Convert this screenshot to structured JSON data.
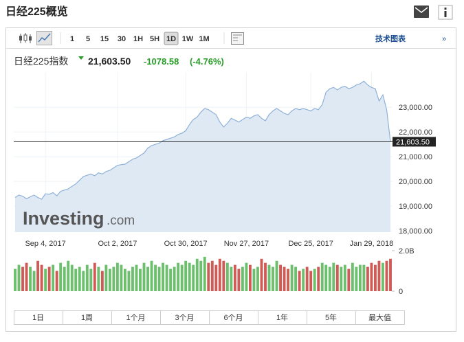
{
  "header": {
    "title": "日经225概览"
  },
  "toolbar": {
    "intervals": [
      "1",
      "5",
      "15",
      "30",
      "1H",
      "5H",
      "1D",
      "1W",
      "1M"
    ],
    "active_interval": 6,
    "link": "技术图表",
    "link_arrow": "»"
  },
  "quote": {
    "name": "日经225指数",
    "price": "21,603.50",
    "change": "-1078.58",
    "change_pct": "(-4.76%)"
  },
  "watermark": {
    "brand": "Investing",
    "suffix": ".com"
  },
  "ranges": [
    "1日",
    "1周",
    "1个月",
    "3个月",
    "6个月",
    "1年",
    "5年",
    "最大值"
  ],
  "chart_data": {
    "type": "area",
    "categories": [
      null,
      null,
      null,
      null,
      null,
      null,
      null,
      null,
      "Sep 4, 2017",
      null,
      null,
      null,
      null,
      null,
      null,
      null,
      null,
      null,
      null,
      null,
      null,
      null,
      null,
      null,
      null,
      null,
      null,
      "Oct 2, 2017",
      null,
      null,
      null,
      null,
      null,
      null,
      null,
      null,
      null,
      null,
      null,
      null,
      null,
      null,
      null,
      null,
      null,
      "Oct 30, 2017",
      null,
      null,
      null,
      null,
      null,
      null,
      null,
      null,
      null,
      null,
      null,
      null,
      null,
      null,
      null,
      "Nov 27, 2017",
      null,
      null,
      null,
      null,
      null,
      null,
      null,
      null,
      null,
      null,
      null,
      null,
      null,
      null,
      null,
      null,
      "Dec 25, 2017",
      null,
      null,
      null,
      null,
      null,
      null,
      null,
      null,
      null,
      null,
      null,
      null,
      null,
      null,
      null,
      "Jan 29, 2018",
      null,
      null,
      null,
      null,
      null
    ],
    "series": [
      {
        "name": "日经225指数",
        "color": "#8fb1d6",
        "fill": "#dfe9f4",
        "values": [
          19350,
          19450,
          19400,
          19300,
          19380,
          19450,
          19350,
          19280,
          19500,
          19480,
          19550,
          19420,
          19600,
          19650,
          19700,
          19800,
          19900,
          20050,
          20200,
          20250,
          20300,
          20230,
          20350,
          20300,
          20400,
          20450,
          20550,
          20650,
          20680,
          20700,
          20800,
          20900,
          20950,
          21050,
          21150,
          21350,
          21450,
          21500,
          21550,
          21650,
          21700,
          21750,
          21800,
          21900,
          21950,
          22050,
          22300,
          22500,
          22600,
          22800,
          22950,
          22900,
          22800,
          22700,
          22400,
          22200,
          22350,
          22550,
          22480,
          22400,
          22500,
          22600,
          22550,
          22650,
          22700,
          22550,
          22450,
          22700,
          22850,
          22950,
          22850,
          22750,
          22700,
          22850,
          22950,
          22900,
          22950,
          22900,
          22850,
          22950,
          22900,
          23100,
          23600,
          23750,
          23800,
          23700,
          23800,
          23850,
          23750,
          23800,
          23900,
          23950,
          24050,
          23900,
          23800,
          23750,
          23250,
          23500,
          22900,
          21603.5
        ]
      }
    ],
    "ylim": [
      17950,
      24420
    ],
    "yticks": [
      {
        "value": 18000,
        "label": "18,000.00"
      },
      {
        "value": 19000,
        "label": "19,000.00"
      },
      {
        "value": 20000,
        "label": "20,000.00"
      },
      {
        "value": 21000,
        "label": "21,000.00"
      },
      {
        "value": 22000,
        "label": "22,000.00"
      },
      {
        "value": 23000,
        "label": "23,000.00"
      }
    ],
    "volume": {
      "up_color": "#6cbf6c",
      "down_color": "#d05a55",
      "values": [
        1100000000.0,
        1300000000.0,
        1200000000.0,
        1400000000.0,
        1200000000.0,
        1000000000.0,
        1500000000.0,
        1300000000.0,
        1100000000.0,
        1200000000.0,
        1300000000.0,
        1000000000.0,
        1400000000.0,
        1200000000.0,
        1500000000.0,
        1300000000.0,
        1100000000.0,
        1200000000.0,
        1000000000.0,
        1300000000.0,
        1100000000.0,
        1400000000.0,
        1200000000.0,
        1000000000.0,
        1300000000.0,
        1100000000.0,
        1200000000.0,
        1400000000.0,
        1300000000.0,
        1100000000.0,
        1000000000.0,
        1200000000.0,
        1300000000.0,
        1100000000.0,
        1400000000.0,
        1200000000.0,
        1500000000.0,
        1300000000.0,
        1200000000.0,
        1400000000.0,
        1300000000.0,
        1100000000.0,
        1200000000.0,
        1400000000.0,
        1300000000.0,
        1500000000.0,
        1400000000.0,
        1300000000.0,
        1600000000.0,
        1500000000.0,
        1700000000.0,
        1400000000.0,
        1500000000.0,
        1300000000.0,
        1600000000.0,
        1500000000.0,
        1400000000.0,
        1200000000.0,
        1300000000.0,
        1100000000.0,
        1200000000.0,
        1400000000.0,
        1300000000.0,
        1100000000.0,
        1200000000.0,
        1600000000.0,
        1400000000.0,
        1300000000.0,
        1200000000.0,
        1500000000.0,
        1300000000.0,
        1200000000.0,
        1100000000.0,
        1300000000.0,
        1200000000.0,
        1000000000.0,
        1100000000.0,
        1200000000.0,
        1000000000.0,
        1100000000.0,
        1200000000.0,
        1400000000.0,
        1300000000.0,
        1200000000.0,
        1400000000.0,
        1300000000.0,
        1200000000.0,
        1300000000.0,
        1100000000.0,
        1400000000.0,
        1200000000.0,
        1300000000.0,
        1300000000.0,
        1200000000.0,
        1400000000.0,
        1300000000.0,
        1500000000.0,
        1400000000.0,
        1500000000.0,
        1600000000.0
      ],
      "ylim": [
        0,
        2000000000.0
      ],
      "yticks": [
        0,
        {
          "value": 2000000000.0,
          "label": "2.0B"
        }
      ]
    }
  }
}
